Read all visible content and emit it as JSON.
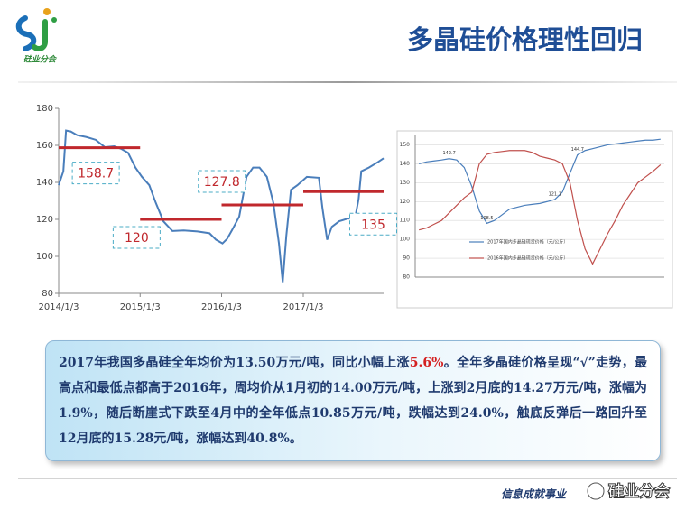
{
  "header": {
    "logo_text": "硅业分会",
    "title": "多晶硅价格理性回归"
  },
  "chart_data": [
    {
      "type": "line",
      "x": [
        "2014/1/3",
        "2014/1/24",
        "2014/2/5",
        "2014/2/26",
        "2014/3/27",
        "2014/5/7",
        "2014/6/18",
        "2014/7/29",
        "2014/9/9",
        "2014/10/12",
        "2014/11/10",
        "2014/12/13",
        "2015/1/11",
        "2015/2/13",
        "2015/3/14",
        "2015/4/17",
        "2015/5/28",
        "2015/7/17",
        "2015/9/17",
        "2015/11/10",
        "2015/12/9",
        "2016/1/7",
        "2016/1/28",
        "2016/2/18",
        "2016/3/22",
        "2016/4/24",
        "2016/5/23",
        "2016/6/21",
        "2016/7/24",
        "2016/8/22",
        "2016/9/16",
        "2016/10/3",
        "2016/10/19",
        "2016/11/9",
        "2016/12/8",
        "2017/1/19",
        "2017/3/14",
        "2017/3/30",
        "2017/4/20",
        "2017/5/11",
        "2017/6/13",
        "2017/7/24",
        "2017/8/22",
        "2017/9/8",
        "2017/9/20",
        "2017/10/24",
        "2017/12/4",
        "2017/12/29"
      ],
      "series": [
        {
          "color": "#4a7ebb",
          "values": [
            138.5,
            146,
            168,
            167.5,
            165.5,
            164.5,
            163,
            159,
            159.5,
            158,
            156,
            148,
            143,
            138.5,
            129,
            119,
            113.7,
            114,
            113.5,
            112.5,
            109,
            107,
            109.5,
            114,
            121.5,
            143,
            148,
            148,
            143,
            129,
            107,
            86,
            111,
            136,
            138.5,
            143,
            142.5,
            126,
            109,
            116,
            119,
            120.5,
            120,
            131,
            146,
            148,
            151,
            153
          ]
        }
      ],
      "xlim": [
        "2014/1/3",
        "2017/12/29"
      ],
      "xticks": [
        "2014/1/3",
        "2015/1/3",
        "2016/1/3",
        "2017/1/3"
      ],
      "ylim": [
        80,
        180
      ],
      "yticks": [
        80,
        100,
        120,
        140,
        160,
        180
      ],
      "grid": false,
      "average_color": "#c0282d",
      "averages": [
        {
          "value": 158.7,
          "start": "2014/1/3",
          "end": "2015/1/3"
        },
        {
          "value": 120,
          "start": "2015/1/3",
          "end": "2016/1/3"
        },
        {
          "value": 127.8,
          "start": "2016/1/3",
          "end": "2017/1/3"
        },
        {
          "value": 135,
          "start": "2017/1/3",
          "end": "2017/12/29"
        }
      ]
    },
    {
      "type": "line",
      "categories": [
        null,
        null,
        null,
        null,
        null,
        null,
        null,
        null,
        null,
        null,
        null,
        null,
        null,
        null,
        null,
        null,
        null,
        null,
        null,
        null,
        null,
        null,
        null,
        null,
        null,
        null,
        null,
        null,
        null,
        null,
        null,
        null,
        null
      ],
      "series": [
        {
          "name": "2017年国内多晶硅现货价格（元/公斤）",
          "color": "#4a7ebb",
          "values": [
            140,
            141,
            141.5,
            142,
            142.7,
            142,
            138,
            128,
            115,
            108.5,
            110,
            113,
            116,
            117,
            118,
            118.5,
            119,
            120,
            121.1,
            125,
            135,
            144.7,
            147,
            148,
            149,
            150,
            150.5,
            151,
            151.5,
            152,
            152.5,
            152.5,
            153
          ]
        },
        {
          "name": "2016年国内多晶硅现货价格（元/公斤）",
          "color": "#c0504d",
          "values": [
            105,
            106,
            108,
            110,
            114,
            118,
            122,
            125,
            140,
            145,
            146,
            146.5,
            147,
            147,
            147,
            146,
            144,
            143,
            142,
            140,
            130,
            110,
            95,
            87,
            95,
            103,
            110,
            118,
            124,
            130,
            133,
            136,
            139.5
          ]
        }
      ],
      "ylim": [
        80,
        155
      ],
      "yticks": [
        80,
        90,
        100,
        110,
        120,
        130,
        140,
        150
      ],
      "grid": true,
      "annotations": [
        {
          "series": 0,
          "index": 4,
          "value": 142.7
        },
        {
          "series": 0,
          "index": 9,
          "value": 108.5
        },
        {
          "series": 0,
          "index": 18,
          "value": 121.1
        },
        {
          "series": 0,
          "index": 21,
          "value": 144.7
        }
      ]
    }
  ],
  "summary": [
    "2017年我国多晶硅全年均价为13.50万元/吨，同比小幅上涨",
    "5.6%",
    "。全年多晶硅价格呈现“√”走势，最高点和最低点都高于2016年，周均价从1月初的14.00万元/吨，上涨到2月底的14.27万元/吨，涨幅为1.9%，随后断崖式下跌至4月中的全年低点10.85万元/吨，跌幅达到24.0%，触底反弹后一路回升至12月底的15.28元/吨，涨幅达到40.8%。"
  ],
  "footer": {
    "slogan": "信息成就事业",
    "watermark": "硅业分会"
  }
}
